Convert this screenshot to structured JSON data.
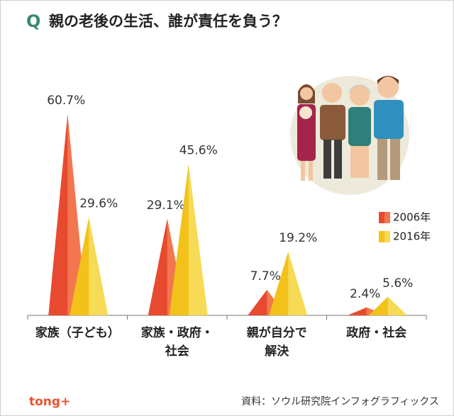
{
  "chart_data": {
    "type": "triangle",
    "title_marker": "Q",
    "title": "親の老後の生活、誰が責任を負う？",
    "categories": [
      "家族（子ども）",
      "家族・政府・社会",
      "親が自分で解決",
      "政府・社会"
    ],
    "series": [
      {
        "name": "2006年",
        "color": "#e84a2f",
        "values": [
          60.7,
          29.1,
          7.7,
          2.4
        ],
        "value_labels": [
          "60.7%",
          "29.1%",
          "7.7%",
          "2.4%"
        ]
      },
      {
        "name": "2016年",
        "color": "#f2c21b",
        "values": [
          29.6,
          45.6,
          19.2,
          5.6
        ],
        "value_labels": [
          "29.6%",
          "45.6%",
          "19.2%",
          "5.6%"
        ]
      }
    ],
    "source": "資料：ソウル研究院インフォグラフィックス",
    "logo": "tong+"
  }
}
